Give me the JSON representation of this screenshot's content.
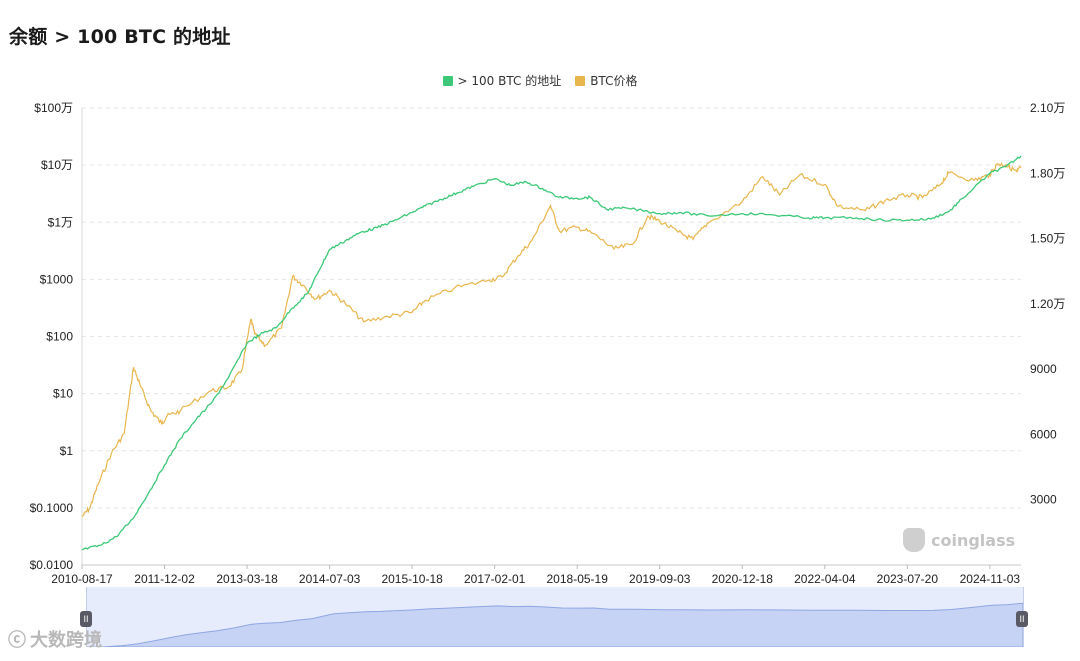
{
  "page": {
    "title": "余额 > 100 BTC 的地址",
    "watermark": "coinglass",
    "corner_watermark": "大数跨境"
  },
  "legend": [
    {
      "label": "> 100 BTC 的地址",
      "color": "#3dc878"
    },
    {
      "label": "BTC价格",
      "color": "#e8b64c"
    }
  ],
  "chart_data": {
    "type": "line",
    "x_ticks": [
      "2010-08-17",
      "2011-12-02",
      "2013-03-18",
      "2014-07-03",
      "2015-10-18",
      "2017-02-01",
      "2018-05-19",
      "2019-09-03",
      "2020-12-18",
      "2022-04-04",
      "2023-07-20",
      "2024-11-03"
    ],
    "x_range": [
      "2010-08-17",
      "2025-04-30"
    ],
    "left_axis": {
      "scale": "log",
      "ticks": [
        "$0.0100",
        "$0.1000",
        "$1",
        "$10",
        "$100",
        "$1000",
        "$1万",
        "$10万",
        "$100万"
      ],
      "range": [
        0.01,
        1000000
      ]
    },
    "right_axis": {
      "scale": "linear",
      "ticks": [
        "3000",
        "6000",
        "9000",
        "1.20万",
        "1.50万",
        "1.80万",
        "2.10万"
      ],
      "range": [
        0,
        21000
      ]
    },
    "grid": true,
    "legend_position": "top-center",
    "series": [
      {
        "name": "> 100 BTC 的地址",
        "axis": "right",
        "color": "#3dc878",
        "points": [
          [
            "2010-08-17",
            700
          ],
          [
            "2010-12-01",
            900
          ],
          [
            "2011-03-01",
            1300
          ],
          [
            "2011-06-01",
            2100
          ],
          [
            "2011-09-01",
            3300
          ],
          [
            "2011-12-02",
            4600
          ],
          [
            "2012-03-01",
            5800
          ],
          [
            "2012-06-01",
            6700
          ],
          [
            "2012-09-01",
            7500
          ],
          [
            "2012-12-01",
            8600
          ],
          [
            "2013-03-18",
            10200
          ],
          [
            "2013-06-01",
            10600
          ],
          [
            "2013-09-01",
            10900
          ],
          [
            "2013-12-01",
            11800
          ],
          [
            "2014-03-01",
            12500
          ],
          [
            "2014-05-01",
            13500
          ],
          [
            "2014-07-03",
            14500
          ],
          [
            "2014-10-01",
            14900
          ],
          [
            "2015-01-01",
            15300
          ],
          [
            "2015-04-01",
            15500
          ],
          [
            "2015-07-01",
            15800
          ],
          [
            "2015-10-18",
            16200
          ],
          [
            "2016-01-01",
            16500
          ],
          [
            "2016-04-01",
            16800
          ],
          [
            "2016-07-01",
            17100
          ],
          [
            "2016-10-01",
            17400
          ],
          [
            "2017-02-01",
            17750
          ],
          [
            "2017-05-01",
            17450
          ],
          [
            "2017-08-01",
            17600
          ],
          [
            "2017-11-01",
            17300
          ],
          [
            "2018-02-01",
            16900
          ],
          [
            "2018-05-19",
            16850
          ],
          [
            "2018-08-01",
            16900
          ],
          [
            "2018-11-01",
            16350
          ],
          [
            "2019-03-01",
            16400
          ],
          [
            "2019-09-03",
            16150
          ],
          [
            "2020-01-01",
            16200
          ],
          [
            "2020-06-01",
            16050
          ],
          [
            "2020-12-18",
            16150
          ],
          [
            "2021-06-01",
            16100
          ],
          [
            "2022-01-01",
            15950
          ],
          [
            "2022-04-04",
            15950
          ],
          [
            "2022-10-01",
            15950
          ],
          [
            "2023-03-01",
            15850
          ],
          [
            "2023-07-20",
            15850
          ],
          [
            "2023-12-01",
            15900
          ],
          [
            "2024-03-15",
            16250
          ],
          [
            "2024-06-01",
            16850
          ],
          [
            "2024-11-03",
            18000
          ],
          [
            "2025-02-01",
            18300
          ],
          [
            "2025-04-30",
            18800
          ]
        ]
      },
      {
        "name": "BTC价格",
        "axis": "left",
        "color": "#e8b64c",
        "points": [
          [
            "2010-08-17",
            0.07
          ],
          [
            "2010-10-01",
            0.1
          ],
          [
            "2010-11-15",
            0.25
          ],
          [
            "2011-02-01",
            0.9
          ],
          [
            "2011-04-15",
            2
          ],
          [
            "2011-06-08",
            29
          ],
          [
            "2011-07-15",
            14
          ],
          [
            "2011-09-15",
            5
          ],
          [
            "2011-11-15",
            3
          ],
          [
            "2011-12-15",
            4
          ],
          [
            "2012-03-01",
            5
          ],
          [
            "2012-08-15",
            11
          ],
          [
            "2012-12-01",
            13
          ],
          [
            "2013-02-15",
            25
          ],
          [
            "2013-04-09",
            200
          ],
          [
            "2013-05-01",
            110
          ],
          [
            "2013-07-01",
            70
          ],
          [
            "2013-10-01",
            140
          ],
          [
            "2013-12-04",
            1130
          ],
          [
            "2014-02-01",
            800
          ],
          [
            "2014-04-15",
            450
          ],
          [
            "2014-07-03",
            640
          ],
          [
            "2014-10-01",
            380
          ],
          [
            "2015-01-14",
            180
          ],
          [
            "2015-06-01",
            225
          ],
          [
            "2015-10-18",
            265
          ],
          [
            "2016-01-01",
            430
          ],
          [
            "2016-06-15",
            700
          ],
          [
            "2017-01-01",
            980
          ],
          [
            "2017-03-15",
            1100
          ],
          [
            "2017-06-15",
            2600
          ],
          [
            "2017-09-01",
            4700
          ],
          [
            "2017-12-17",
            19500
          ],
          [
            "2018-02-06",
            7000
          ],
          [
            "2018-05-19",
            8200
          ],
          [
            "2018-08-15",
            6400
          ],
          [
            "2018-12-15",
            3400
          ],
          [
            "2019-04-01",
            4100
          ],
          [
            "2019-06-26",
            12800
          ],
          [
            "2019-09-03",
            10500
          ],
          [
            "2019-12-18",
            6700
          ],
          [
            "2020-03-12",
            5000
          ],
          [
            "2020-06-01",
            9500
          ],
          [
            "2020-12-18",
            23000
          ],
          [
            "2021-04-14",
            63000
          ],
          [
            "2021-07-20",
            30000
          ],
          [
            "2021-11-10",
            67000
          ],
          [
            "2022-04-04",
            46000
          ],
          [
            "2022-06-18",
            19000
          ],
          [
            "2022-11-21",
            16000
          ],
          [
            "2023-03-15",
            24000
          ],
          [
            "2023-07-20",
            30000
          ],
          [
            "2023-10-15",
            27000
          ],
          [
            "2024-01-15",
            43000
          ],
          [
            "2024-03-14",
            73000
          ],
          [
            "2024-08-05",
            54000
          ],
          [
            "2024-11-03",
            68000
          ],
          [
            "2024-12-17",
            106000
          ],
          [
            "2025-02-01",
            100000
          ],
          [
            "2025-04-07",
            77000
          ],
          [
            "2025-04-30",
            94000
          ]
        ]
      }
    ]
  }
}
